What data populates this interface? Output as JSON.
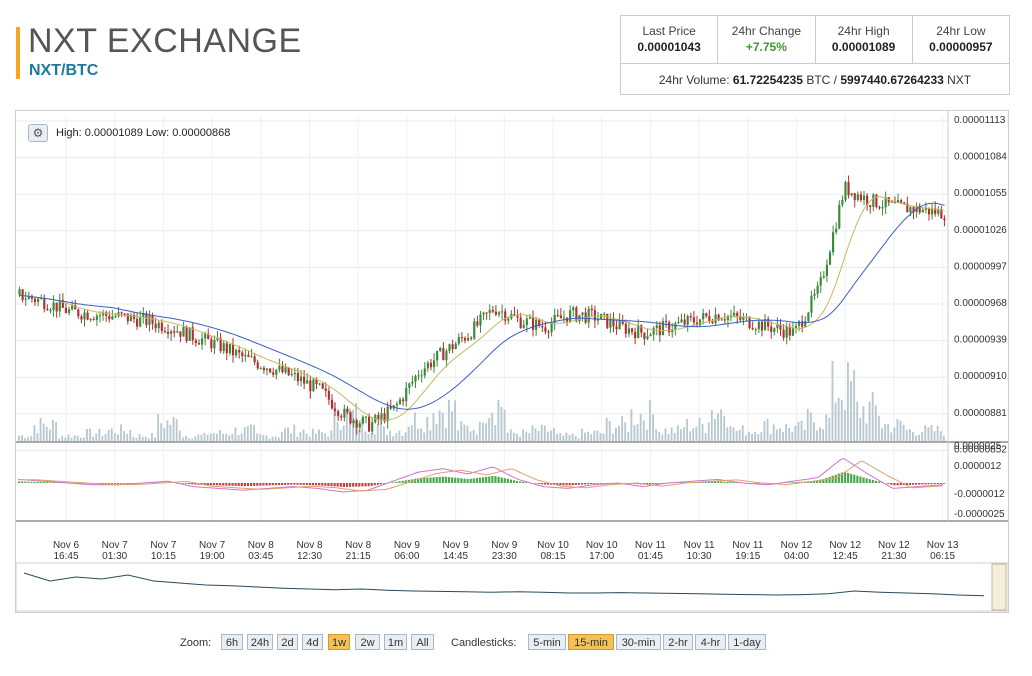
{
  "header": {
    "title": "NXT EXCHANGE",
    "pair": "NXT/BTC"
  },
  "stats": {
    "last_price": {
      "label": "Last Price",
      "value": "0.00001043"
    },
    "change": {
      "label": "24hr Change",
      "value": "+7.75%"
    },
    "high": {
      "label": "24hr High",
      "value": "0.00001089"
    },
    "low": {
      "label": "24hr Low",
      "value": "0.00000957"
    },
    "volume_label": "24hr Volume:",
    "volume_btc": "61.72254235",
    "btc_unit": "BTC /",
    "volume_nxt": "5997440.67264233",
    "nxt_unit": "NXT"
  },
  "chart": {
    "high_low_text": "High: 0.00001089  Low: 0.00000868",
    "y_ticks": [
      "0.00001113",
      "0.00001084",
      "0.00001055",
      "0.00001026",
      "0.00000997",
      "0.00000968",
      "0.00000939",
      "0.00000910",
      "0.00000881",
      "0.00000852"
    ],
    "macd_ticks": [
      "0.0000025",
      "0.0000012",
      "-0.0000012",
      "-0.0000025"
    ],
    "x_ticks": [
      [
        "Nov 6",
        "16:45"
      ],
      [
        "Nov 7",
        "01:30"
      ],
      [
        "Nov 7",
        "10:15"
      ],
      [
        "Nov 7",
        "19:00"
      ],
      [
        "Nov 8",
        "03:45"
      ],
      [
        "Nov 8",
        "12:30"
      ],
      [
        "Nov 8",
        "21:15"
      ],
      [
        "Nov 9",
        "06:00"
      ],
      [
        "Nov 9",
        "14:45"
      ],
      [
        "Nov 9",
        "23:30"
      ],
      [
        "Nov 10",
        "08:15"
      ],
      [
        "Nov 10",
        "17:00"
      ],
      [
        "Nov 11",
        "01:45"
      ],
      [
        "Nov 11",
        "10:30"
      ],
      [
        "Nov 11",
        "19:15"
      ],
      [
        "Nov 12",
        "04:00"
      ],
      [
        "Nov 12",
        "12:45"
      ],
      [
        "Nov 12",
        "21:30"
      ],
      [
        "Nov 13",
        "06:15"
      ]
    ],
    "colors": {
      "up": "#3a8a3a",
      "down": "#b03030",
      "sma_fast": "#c8b860",
      "sma_slow": "#3a5fc8",
      "volume": "#b8c8d0",
      "macd_pos": "#4aa84a",
      "macd_neg": "#c84040",
      "macd_line": "#d070d0",
      "signal_line": "#e0a070",
      "navigator": "#2a4a5a"
    }
  },
  "chart_data": {
    "type": "candlestick",
    "ylim": [
      8.52e-06,
      1.113e-05
    ],
    "close": [
      9.75e-06,
      9.7e-06,
      9.62e-06,
      9.6e-06,
      9.58e-06,
      9.55e-06,
      9.5e-06,
      9.42e-06,
      9.35e-06,
      9.25e-06,
      9.18e-06,
      9.1e-06,
      9e-06,
      8.8e-06,
      8.72e-06,
      8.85e-06,
      9.15e-06,
      9.3e-06,
      9.45e-06,
      9.65e-06,
      9.55e-06,
      9.5e-06,
      9.6e-06,
      9.58e-06,
      9.5e-06,
      9.45e-06,
      9.5e-06,
      9.55e-06,
      9.6e-06,
      9.55e-06,
      9.5e-06,
      9.45e-06,
      9.8e-06,
      1.06e-05,
      1.05e-05,
      1.045e-05,
      1.043e-05,
      1.04e-05
    ],
    "volume_relative": [
      0.1,
      0.3,
      0.1,
      0.15,
      0.2,
      0.1,
      0.35,
      0.1,
      0.15,
      0.2,
      0.1,
      0.2,
      0.15,
      0.5,
      0.3,
      0.2,
      0.4,
      0.6,
      0.25,
      0.7,
      0.15,
      0.2,
      0.1,
      0.15,
      0.3,
      0.5,
      0.2,
      0.3,
      0.6,
      0.2,
      0.3,
      0.25,
      0.4,
      1.0,
      0.6,
      0.3,
      0.2,
      0.2
    ],
    "macd": [
      0.2,
      0.1,
      0.0,
      -0.1,
      -0.1,
      0.0,
      0.1,
      -0.2,
      -0.3,
      -0.4,
      -0.3,
      -0.2,
      -0.3,
      -0.5,
      -0.4,
      0.1,
      0.6,
      0.8,
      0.5,
      0.9,
      0.2,
      -0.2,
      -0.3,
      -0.1,
      0.0,
      -0.2,
      0.0,
      0.1,
      0.2,
      0.0,
      -0.1,
      0.1,
      0.3,
      1.4,
      0.5,
      -0.3,
      -0.2,
      -0.1
    ]
  },
  "navigator": {
    "values": [
      0.9,
      0.7,
      0.8,
      0.75,
      0.85,
      0.7,
      0.65,
      0.6,
      0.58,
      0.55,
      0.52,
      0.5,
      0.48,
      0.5,
      0.47,
      0.45,
      0.44,
      0.43,
      0.42,
      0.43,
      0.42,
      0.4,
      0.4,
      0.41,
      0.4,
      0.39,
      0.38,
      0.37,
      0.36,
      0.35,
      0.36,
      0.38,
      0.45,
      0.42,
      0.4,
      0.38,
      0.35,
      0.33
    ]
  },
  "controls": {
    "zoom_label": "Zoom:",
    "zoom": [
      "6h",
      "24h",
      "2d",
      "4d",
      "1w",
      "2w",
      "1m",
      "All"
    ],
    "zoom_active": "1w",
    "candles_label": "Candlesticks:",
    "candles": [
      "5-min",
      "15-min",
      "30-min",
      "2-hr",
      "4-hr",
      "1-day"
    ],
    "candles_active": "15-min"
  }
}
